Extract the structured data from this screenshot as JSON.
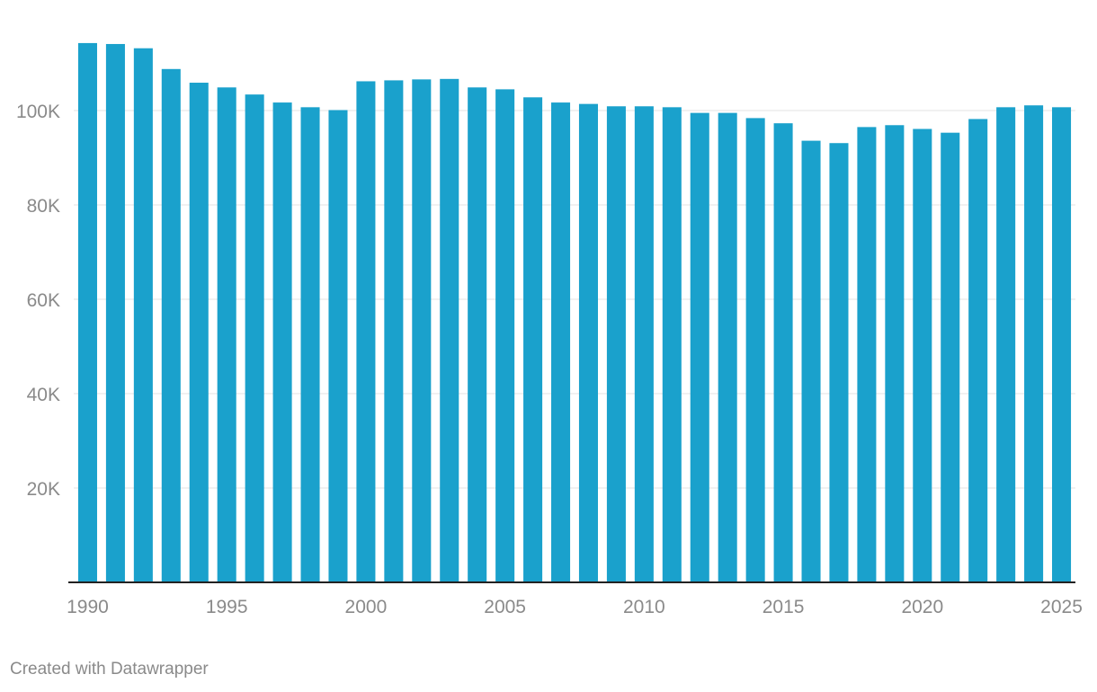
{
  "chart_data": {
    "type": "bar",
    "categories": [
      "1990",
      "1991",
      "1992",
      "1993",
      "1994",
      "1995",
      "1996",
      "1997",
      "1998",
      "1999",
      "2000",
      "2001",
      "2002",
      "2003",
      "2004",
      "2005",
      "2006",
      "2007",
      "2008",
      "2009",
      "2010",
      "2011",
      "2012",
      "2013",
      "2014",
      "2015",
      "2016",
      "2017",
      "2018",
      "2019",
      "2020",
      "2021",
      "2022",
      "2023",
      "2024",
      "2025"
    ],
    "values": [
      114300,
      114100,
      113200,
      108800,
      105900,
      104900,
      103400,
      101700,
      100700,
      100100,
      106200,
      106400,
      106600,
      106700,
      104900,
      104500,
      102800,
      101700,
      101400,
      100900,
      100900,
      100700,
      99500,
      99500,
      98400,
      97300,
      93600,
      93100,
      96500,
      96900,
      96100,
      95300,
      98200,
      100700,
      101100,
      100700
    ],
    "ylim": [
      0,
      120000
    ],
    "yticks": [
      20000,
      40000,
      60000,
      80000,
      100000
    ],
    "ytick_labels": [
      "20K",
      "40K",
      "60K",
      "80K",
      "100K"
    ],
    "xtick_labels": [
      "1990",
      "1995",
      "2000",
      "2005",
      "2010",
      "2015",
      "2020",
      "2025"
    ],
    "grid": true,
    "bar_color": "#1aa1cc",
    "title": "",
    "xlabel": "",
    "ylabel": ""
  },
  "footer": {
    "credit": "Created with Datawrapper"
  }
}
